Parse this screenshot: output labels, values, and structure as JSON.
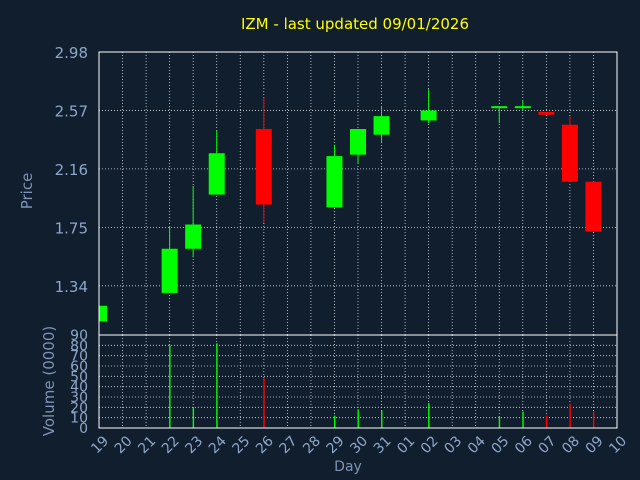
{
  "title": "IZM - last updated 09/01/2026",
  "colors": {
    "background": "#111e2e",
    "title": "#ffff00",
    "axis_text": "#8fa6c9",
    "axis_label": "#7e93b5",
    "frame": "#ffffff",
    "grid": "#d8dde6",
    "up": "#00ff00",
    "down": "#ff0000"
  },
  "chart_data": [
    {
      "type": "candlestick",
      "ylabel": "Price",
      "ylim": [
        0.995,
        2.98
      ],
      "yticks": [
        "2.98",
        "2.57",
        "2.16",
        "1.75",
        "1.34"
      ],
      "grid": true,
      "x": [
        "19",
        "20",
        "21",
        "22",
        "23",
        "24",
        "25",
        "26",
        "27",
        "28",
        "29",
        "30",
        "31",
        "01",
        "02",
        "03",
        "04",
        "05",
        "06",
        "07",
        "08",
        "09",
        "10"
      ],
      "candles": [
        {
          "day": "19",
          "open": 1.09,
          "close": 1.2,
          "high": 1.2,
          "low": 1.09
        },
        {
          "day": "22",
          "open": 1.29,
          "close": 1.6,
          "high": 1.76,
          "low": 1.29
        },
        {
          "day": "23",
          "open": 1.6,
          "close": 1.77,
          "high": 2.04,
          "low": 1.54
        },
        {
          "day": "24",
          "open": 1.98,
          "close": 2.27,
          "high": 2.43,
          "low": 1.98
        },
        {
          "day": "26",
          "open": 2.44,
          "close": 1.91,
          "high": 2.66,
          "low": 1.78
        },
        {
          "day": "29",
          "open": 1.89,
          "close": 2.25,
          "high": 2.33,
          "low": 1.89
        },
        {
          "day": "30",
          "open": 2.26,
          "close": 2.44,
          "high": 2.44,
          "low": 2.2
        },
        {
          "day": "31",
          "open": 2.4,
          "close": 2.53,
          "high": 2.6,
          "low": 2.34
        },
        {
          "day": "02",
          "open": 2.5,
          "close": 2.57,
          "high": 2.72,
          "low": 2.48
        },
        {
          "day": "05",
          "open": 2.59,
          "close": 2.6,
          "high": 2.6,
          "low": 2.48
        },
        {
          "day": "06",
          "open": 2.59,
          "close": 2.6,
          "high": 2.64,
          "low": 2.57
        },
        {
          "day": "07",
          "open": 2.56,
          "close": 2.54,
          "high": 2.56,
          "low": 2.54
        },
        {
          "day": "08",
          "open": 2.47,
          "close": 2.07,
          "high": 2.53,
          "low": 2.07
        },
        {
          "day": "09",
          "open": 2.07,
          "close": 1.72,
          "high": 2.07,
          "low": 1.72
        }
      ]
    },
    {
      "type": "bar",
      "ylabel": "Volume (0000)",
      "xlabel": "Day",
      "ylim": [
        0,
        90
      ],
      "yticks": [
        "90",
        "80",
        "70",
        "60",
        "50",
        "40",
        "30",
        "20",
        "10",
        "0"
      ],
      "grid": true,
      "categories": [
        "22",
        "23",
        "24",
        "26",
        "29",
        "30",
        "31",
        "02",
        "05",
        "06",
        "07",
        "08",
        "09"
      ],
      "values": [
        80,
        20,
        82,
        48,
        12,
        18,
        17,
        24,
        11,
        16,
        12,
        23,
        16
      ],
      "directions": [
        "up",
        "up",
        "up",
        "down",
        "up",
        "up",
        "up",
        "up",
        "up",
        "up",
        "down",
        "down",
        "down"
      ]
    }
  ]
}
